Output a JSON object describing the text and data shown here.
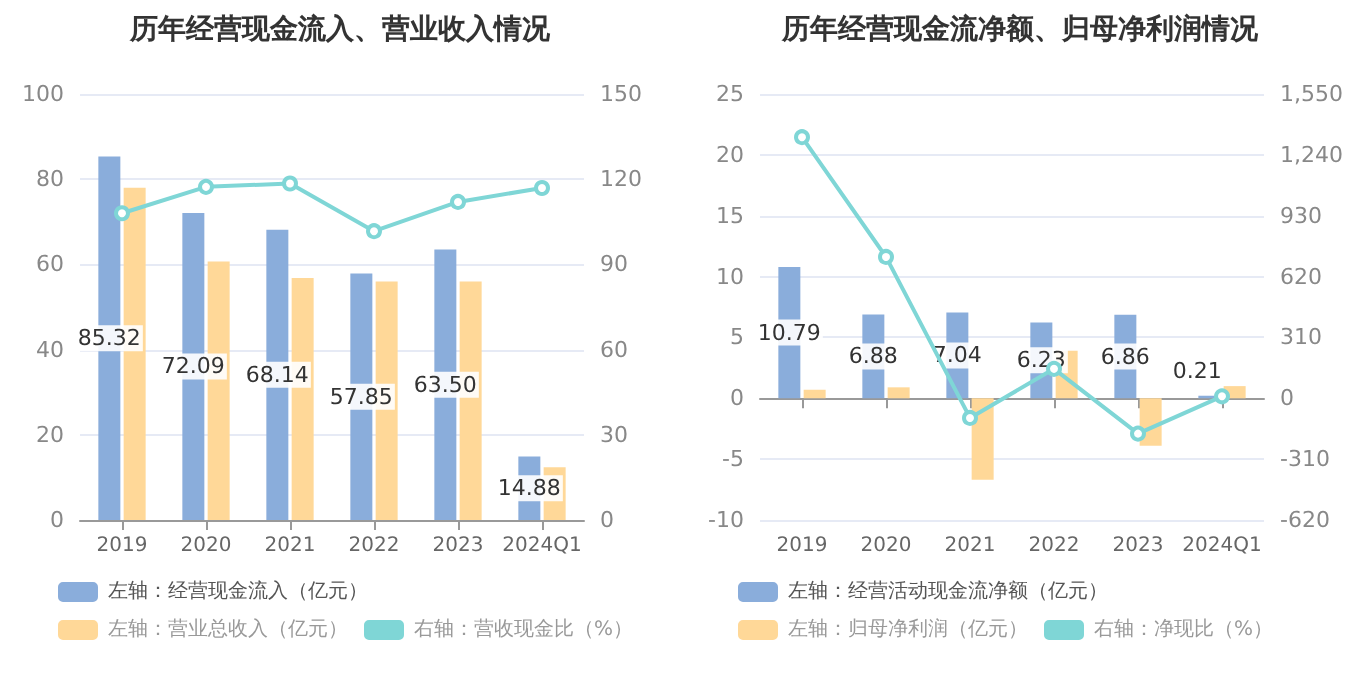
{
  "chart_data": [
    {
      "type": "bar",
      "title": "历年经营现金流入、营业收入情况",
      "categories": [
        "2019",
        "2020",
        "2021",
        "2022",
        "2023",
        "2024Q1"
      ],
      "ylim": [
        0,
        100
      ],
      "yticks": [
        0,
        20,
        40,
        60,
        80,
        100
      ],
      "y2lim": [
        0,
        150
      ],
      "y2ticks": [
        0,
        30,
        60,
        90,
        120,
        150
      ],
      "grid": "y",
      "legend": "bottom",
      "series": [
        {
          "name": "左轴：经营现金流入（亿元）",
          "axis": "y",
          "color": "#8aaddb",
          "values": [
            85.32,
            72.09,
            68.14,
            57.85,
            63.5,
            14.88
          ],
          "value_labels": [
            "85.32",
            "72.09",
            "68.14",
            "57.85",
            "63.50",
            "14.88"
          ]
        },
        {
          "name": "左轴：营业总收入（亿元）",
          "axis": "y",
          "color": "#ffd898",
          "values": [
            78,
            60.7,
            56.8,
            56,
            56,
            12.4
          ]
        },
        {
          "name": "右轴：营收现金比（%）",
          "type": "line",
          "axis": "y2",
          "color": "#7fd6d6",
          "marker": "circle",
          "values": [
            108,
            117.3,
            118.5,
            101.7,
            112,
            116.9
          ]
        }
      ]
    },
    {
      "type": "bar",
      "title": "历年经营现金流净额、归母净利润情况",
      "categories": [
        "2019",
        "2020",
        "2021",
        "2022",
        "2023",
        "2024Q1"
      ],
      "ylim": [
        -10,
        25
      ],
      "yticks": [
        -10,
        -5,
        0,
        5,
        10,
        15,
        20,
        25
      ],
      "y2lim": [
        -620,
        1550
      ],
      "y2ticks": [
        -620,
        -310,
        0,
        310,
        620,
        930,
        {
          "value": 1240,
          "label": "1,240"
        },
        {
          "value": 1550,
          "label": "1,550"
        }
      ],
      "grid": "y",
      "legend": "bottom",
      "series": [
        {
          "name": "左轴：经营活动现金流净额（亿元）",
          "axis": "y",
          "color": "#8aaddb",
          "values": [
            10.79,
            6.88,
            7.04,
            6.23,
            6.86,
            0.21
          ],
          "value_labels": [
            "10.79",
            "6.88",
            "7.04",
            "6.23",
            "6.86",
            "0.21"
          ]
        },
        {
          "name": "左轴：归母净利润（亿元）",
          "axis": "y",
          "color": "#ffd898",
          "values": [
            0.7,
            0.9,
            -6.7,
            3.9,
            -3.9,
            1.0
          ]
        },
        {
          "name": "右轴：净现比（%）",
          "type": "line",
          "axis": "y2",
          "color": "#7fd6d6",
          "marker": "circle",
          "values": [
            1330,
            720,
            -100,
            150,
            -180,
            10
          ]
        }
      ]
    }
  ]
}
